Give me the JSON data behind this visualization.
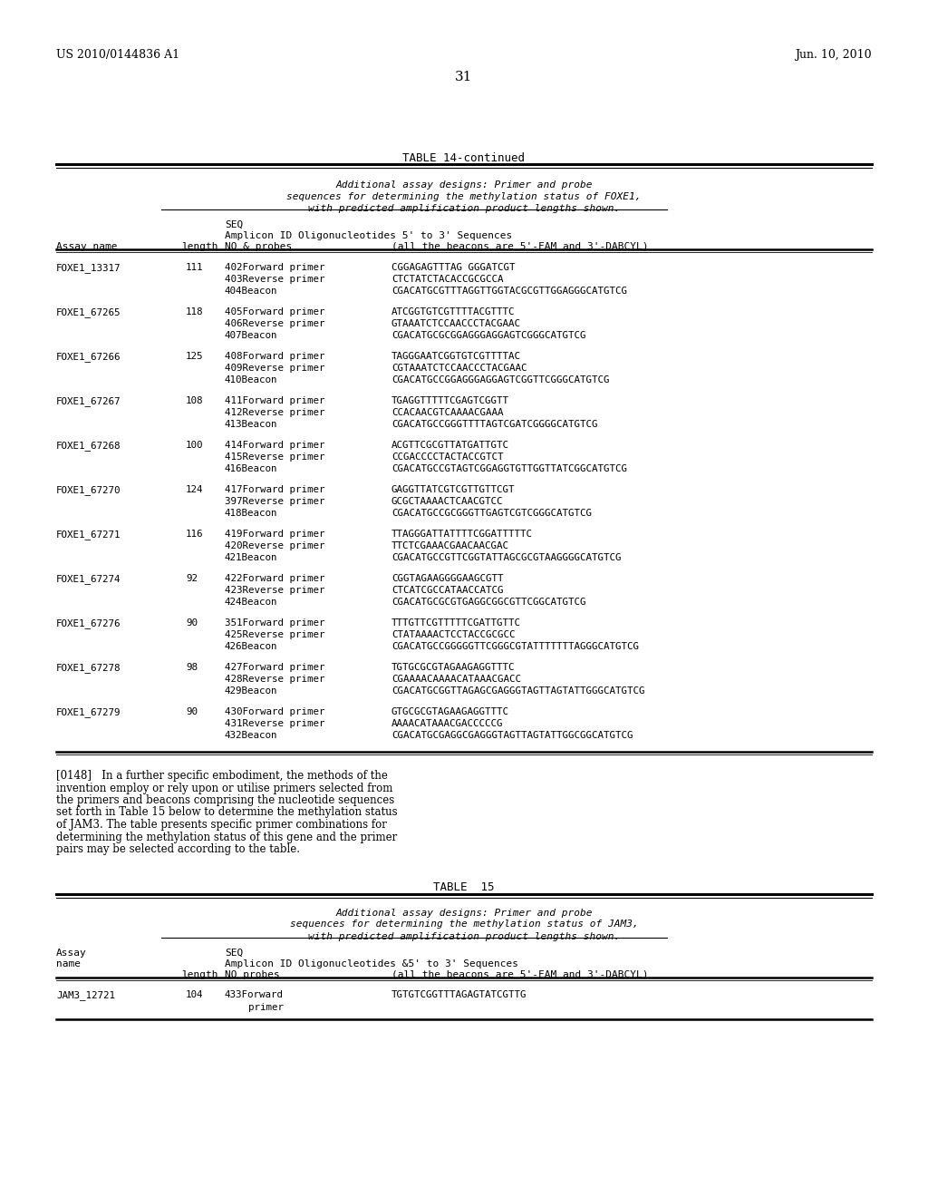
{
  "patent_number": "US 2010/0144836 A1",
  "patent_date": "Jun. 10, 2010",
  "page_number": "31",
  "bg_color": "#ffffff",
  "table14_title": "TABLE 14-continued",
  "table14_rows": [
    [
      "FOXE1_13317",
      "111",
      [
        "402Forward primer",
        "403Reverse primer",
        "404Beacon"
      ],
      [
        "CGGAGAGTTTAG GGGATCGT",
        "CTCTATCTACACCGCGCCA",
        "CGACATGCGTTTAGGTTGGTACGCGTTGGAGGGCATGTCG"
      ]
    ],
    [
      "FOXE1_67265",
      "118",
      [
        "405Forward primer",
        "406Reverse primer",
        "407Beacon"
      ],
      [
        "ATCGGTGTCGTTTTACGTTTC",
        "GTAAATCTCCAACCCTACGAAC",
        "CGACATGCGCGGAGGGAGGAGTCGGGCATGTCG"
      ]
    ],
    [
      "FOXE1_67266",
      "125",
      [
        "408Forward primer",
        "409Reverse primer",
        "410Beacon"
      ],
      [
        "TAGGGAATCGGTGTCGTTTTAC",
        "CGTAAATCTCCAACCCTACGAAC",
        "CGACATGCCGGAGGGAGGAGTCGGTTCGGGCATGTCG"
      ]
    ],
    [
      "FOXE1_67267",
      "108",
      [
        "411Forward primer",
        "412Reverse primer",
        "413Beacon"
      ],
      [
        "TGAGGTTTTTCGAGTCGGTT",
        "CCACAACGTCAAAACGAAA",
        "CGACATGCCGGGTTTTAGTCGATCGGGGCATGTCG"
      ]
    ],
    [
      "FOXE1_67268",
      "100",
      [
        "414Forward primer",
        "415Reverse primer",
        "416Beacon"
      ],
      [
        "ACGTTCGCGTTATGATTGTC",
        "CCGACCCCTACTACCGTCT",
        "CGACATGCCGTAGTCGGAGGTGTTGGTTATCGGCATGTCG"
      ]
    ],
    [
      "FOXE1_67270",
      "124",
      [
        "417Forward primer",
        "397Reverse primer",
        "418Beacon"
      ],
      [
        "GAGGTTATCGTCGTTGTTCGT",
        "GCGCTAAAACTCAACGTCC",
        "CGACATGCCGCGGGTTGAGTCGTCGGGCATGTCG"
      ]
    ],
    [
      "FOXE1_67271",
      "116",
      [
        "419Forward primer",
        "420Reverse primer",
        "421Beacon"
      ],
      [
        "TTAGGGATTATTTTCGGATTTTTC",
        "TTCTCGAAACGAACAACGAC",
        "CGACATGCCGTTCGGTATTAGCGCGTAAGGGGCATGTCG"
      ]
    ],
    [
      "FOXE1_67274",
      "92",
      [
        "422Forward primer",
        "423Reverse primer",
        "424Beacon"
      ],
      [
        "CGGTAGAAGGGGAAGCGTT",
        "CTCATCGCCATAACCATCG",
        "CGACATGCGCGTGAGGCGGCGTTCGGCATGTCG"
      ]
    ],
    [
      "FOXE1_67276",
      "90",
      [
        "351Forward primer",
        "425Reverse primer",
        "426Beacon"
      ],
      [
        "TTTGTTCGTTTTTCGATTGTTC",
        "CTATAAAACTCCTACCGCGCC",
        "CGACATGCCGGGGGTTCGGGCGTATTTTTTTAGGGCATGTCG"
      ]
    ],
    [
      "FOXE1_67278",
      "98",
      [
        "427Forward primer",
        "428Reverse primer",
        "429Beacon"
      ],
      [
        "TGTGCGCGTAGAAGAGGTTTC",
        "CGAAAACAAAACATAAACGACC",
        "CGACATGCGGTTAGAGCGAGGGTAGTTAGTATTGGGCATGTCG"
      ]
    ],
    [
      "FOXE1_67279",
      "90",
      [
        "430Forward primer",
        "431Reverse primer",
        "432Beacon"
      ],
      [
        "GTGCGCGTAGAAGAGGTTTC",
        "AAAACATAAACGACCCCCG",
        "CGACATGCGAGGCGAGGGTAGTTAGTATTGGCGGCATGTCG"
      ]
    ]
  ],
  "para148_lines": [
    "[0148]   In a further specific embodiment, the methods of the",
    "invention employ or rely upon or utilise primers selected from",
    "the primers and beacons comprising the nucleotide sequences",
    "set forth in Table 15 below to determine the methylation status",
    "of JAM3. The table presents specific primer combinations for",
    "determining the methylation status of this gene and the primer",
    "pairs may be selected according to the table."
  ],
  "table15_title": "TABLE  15",
  "table15_rows": [
    [
      "JAM3_12721",
      "104",
      [
        "433Forward",
        "    primer"
      ],
      [
        "TGTGTCGGTTTAGAGTATCGTTG"
      ]
    ]
  ]
}
